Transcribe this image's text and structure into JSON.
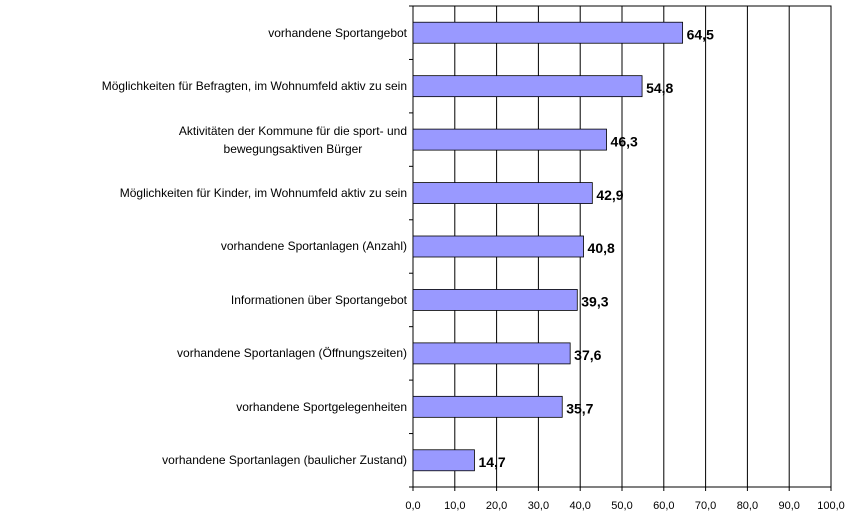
{
  "chart_data": {
    "type": "bar",
    "orientation": "horizontal",
    "categories": [
      "vorhandene Sportangebot",
      "Möglichkeiten für Befragten, im Wohnumfeld aktiv zu sein",
      "Aktivitäten der Kommune für die sport- und\nbewegungsaktiven Bürger",
      "Möglichkeiten für Kinder, im Wohnumfeld aktiv zu sein",
      "vorhandene Sportanlagen (Anzahl)",
      "Informationen über Sportangebot",
      "vorhandene Sportanlagen (Öffnungszeiten)",
      "vorhandene Sportgelegenheiten",
      "vorhandene Sportanlagen (baulicher Zustand)"
    ],
    "values": [
      64.5,
      54.8,
      46.3,
      42.9,
      40.8,
      39.3,
      37.6,
      35.7,
      14.7
    ],
    "value_labels": [
      "64,5",
      "54,8",
      "46,3",
      "42,9",
      "40,8",
      "39,3",
      "37,6",
      "35,7",
      "14,7"
    ],
    "color": "#9999ff",
    "xlim": [
      0,
      100
    ],
    "xticks": [
      {
        "value": 0,
        "label": "0,0"
      },
      {
        "value": 10,
        "label": "10,0"
      },
      {
        "value": 20,
        "label": "20,0"
      },
      {
        "value": 30,
        "label": "30,0"
      },
      {
        "value": 40,
        "label": "40,0"
      },
      {
        "value": 50,
        "label": "50,0"
      },
      {
        "value": 60,
        "label": "60,0"
      },
      {
        "value": 70,
        "label": "70,0"
      },
      {
        "value": 80,
        "label": "80,0"
      },
      {
        "value": 90,
        "label": "90,0"
      },
      {
        "value": 100,
        "label": "100,0"
      }
    ],
    "grid": true
  }
}
